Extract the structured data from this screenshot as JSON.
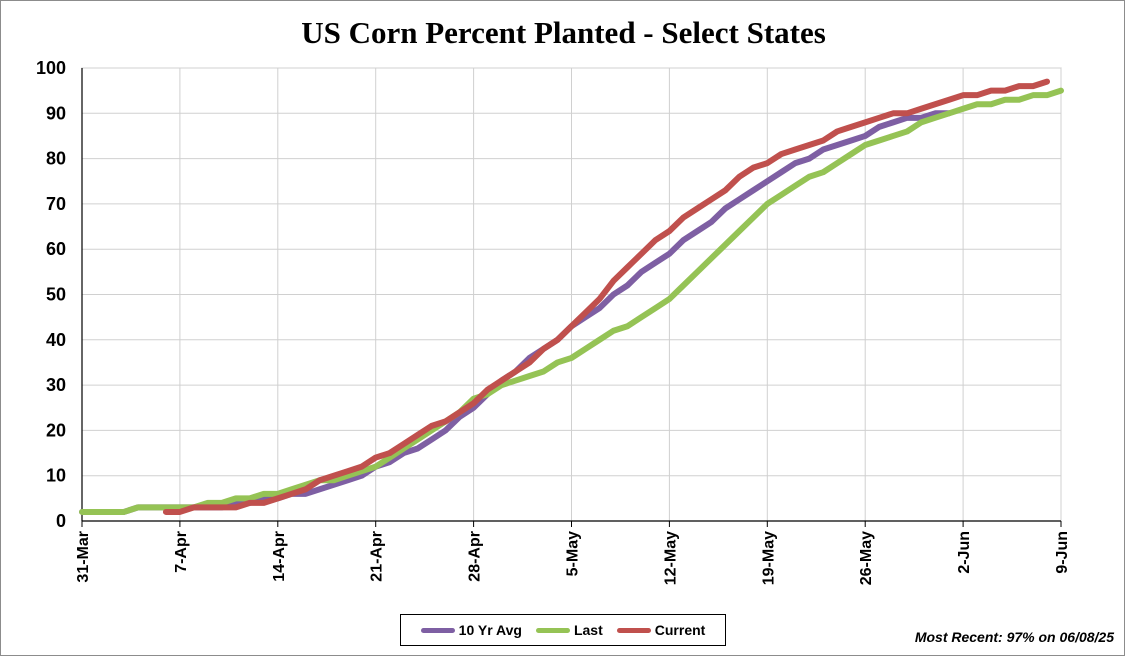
{
  "chart_data": {
    "type": "line",
    "title": "US Corn Percent Planted - Select States",
    "xlabel": "",
    "ylabel": "",
    "ylim": [
      0,
      100
    ],
    "yticks": [
      0,
      10,
      20,
      30,
      40,
      50,
      60,
      70,
      80,
      90,
      100
    ],
    "xlim_day": [
      0,
      70
    ],
    "xtick_labels": [
      {
        "day": 0,
        "label": "31-Mar"
      },
      {
        "day": 7,
        "label": "7-Apr"
      },
      {
        "day": 14,
        "label": "14-Apr"
      },
      {
        "day": 21,
        "label": "21-Apr"
      },
      {
        "day": 28,
        "label": "28-Apr"
      },
      {
        "day": 35,
        "label": "5-May"
      },
      {
        "day": 42,
        "label": "12-May"
      },
      {
        "day": 49,
        "label": "19-May"
      },
      {
        "day": 56,
        "label": "26-May"
      },
      {
        "day": 63,
        "label": "2-Jun"
      },
      {
        "day": 70,
        "label": "9-Jun"
      }
    ],
    "grid": true,
    "legend_position": "bottom",
    "series": [
      {
        "name": "10 Yr Avg",
        "color": "#7E5FA3",
        "points": [
          [
            0,
            2
          ],
          [
            1,
            2
          ],
          [
            2,
            2
          ],
          [
            3,
            2
          ],
          [
            4,
            3
          ],
          [
            5,
            3
          ],
          [
            6,
            3
          ],
          [
            7,
            3
          ],
          [
            8,
            3
          ],
          [
            9,
            3
          ],
          [
            10,
            3
          ],
          [
            11,
            4
          ],
          [
            12,
            4
          ],
          [
            13,
            5
          ],
          [
            14,
            5
          ],
          [
            15,
            6
          ],
          [
            16,
            6
          ],
          [
            17,
            7
          ],
          [
            18,
            8
          ],
          [
            19,
            9
          ],
          [
            20,
            10
          ],
          [
            21,
            12
          ],
          [
            22,
            13
          ],
          [
            23,
            15
          ],
          [
            24,
            16
          ],
          [
            25,
            18
          ],
          [
            26,
            20
          ],
          [
            27,
            23
          ],
          [
            28,
            25
          ],
          [
            29,
            28
          ],
          [
            30,
            31
          ],
          [
            31,
            33
          ],
          [
            32,
            36
          ],
          [
            33,
            38
          ],
          [
            34,
            40
          ],
          [
            35,
            43
          ],
          [
            36,
            45
          ],
          [
            37,
            47
          ],
          [
            38,
            50
          ],
          [
            39,
            52
          ],
          [
            40,
            55
          ],
          [
            41,
            57
          ],
          [
            42,
            59
          ],
          [
            43,
            62
          ],
          [
            44,
            64
          ],
          [
            45,
            66
          ],
          [
            46,
            69
          ],
          [
            47,
            71
          ],
          [
            48,
            73
          ],
          [
            49,
            75
          ],
          [
            50,
            77
          ],
          [
            51,
            79
          ],
          [
            52,
            80
          ],
          [
            53,
            82
          ],
          [
            54,
            83
          ],
          [
            55,
            84
          ],
          [
            56,
            85
          ],
          [
            57,
            87
          ],
          [
            58,
            88
          ],
          [
            59,
            89
          ],
          [
            60,
            89
          ],
          [
            61,
            90
          ],
          [
            62,
            90
          ]
        ]
      },
      {
        "name": "Last",
        "color": "#95C355",
        "points": [
          [
            0,
            2
          ],
          [
            1,
            2
          ],
          [
            2,
            2
          ],
          [
            3,
            2
          ],
          [
            4,
            3
          ],
          [
            5,
            3
          ],
          [
            6,
            3
          ],
          [
            7,
            3
          ],
          [
            8,
            3
          ],
          [
            9,
            4
          ],
          [
            10,
            4
          ],
          [
            11,
            5
          ],
          [
            12,
            5
          ],
          [
            13,
            6
          ],
          [
            14,
            6
          ],
          [
            15,
            7
          ],
          [
            16,
            8
          ],
          [
            17,
            9
          ],
          [
            18,
            9
          ],
          [
            19,
            10
          ],
          [
            20,
            11
          ],
          [
            21,
            12
          ],
          [
            22,
            14
          ],
          [
            23,
            16
          ],
          [
            24,
            18
          ],
          [
            25,
            20
          ],
          [
            26,
            22
          ],
          [
            27,
            24
          ],
          [
            28,
            27
          ],
          [
            29,
            28
          ],
          [
            30,
            30
          ],
          [
            31,
            31
          ],
          [
            32,
            32
          ],
          [
            33,
            33
          ],
          [
            34,
            35
          ],
          [
            35,
            36
          ],
          [
            36,
            38
          ],
          [
            37,
            40
          ],
          [
            38,
            42
          ],
          [
            39,
            43
          ],
          [
            40,
            45
          ],
          [
            41,
            47
          ],
          [
            42,
            49
          ],
          [
            43,
            52
          ],
          [
            44,
            55
          ],
          [
            45,
            58
          ],
          [
            46,
            61
          ],
          [
            47,
            64
          ],
          [
            48,
            67
          ],
          [
            49,
            70
          ],
          [
            50,
            72
          ],
          [
            51,
            74
          ],
          [
            52,
            76
          ],
          [
            53,
            77
          ],
          [
            54,
            79
          ],
          [
            55,
            81
          ],
          [
            56,
            83
          ],
          [
            57,
            84
          ],
          [
            58,
            85
          ],
          [
            59,
            86
          ],
          [
            60,
            88
          ],
          [
            61,
            89
          ],
          [
            62,
            90
          ],
          [
            63,
            91
          ],
          [
            64,
            92
          ],
          [
            65,
            92
          ],
          [
            66,
            93
          ],
          [
            67,
            93
          ],
          [
            68,
            94
          ],
          [
            69,
            94
          ],
          [
            70,
            95
          ]
        ]
      },
      {
        "name": "Current",
        "color": "#C0504D",
        "points": [
          [
            6,
            2
          ],
          [
            7,
            2
          ],
          [
            8,
            3
          ],
          [
            9,
            3
          ],
          [
            10,
            3
          ],
          [
            11,
            3
          ],
          [
            12,
            4
          ],
          [
            13,
            4
          ],
          [
            14,
            5
          ],
          [
            15,
            6
          ],
          [
            16,
            7
          ],
          [
            17,
            9
          ],
          [
            18,
            10
          ],
          [
            19,
            11
          ],
          [
            20,
            12
          ],
          [
            21,
            14
          ],
          [
            22,
            15
          ],
          [
            23,
            17
          ],
          [
            24,
            19
          ],
          [
            25,
            21
          ],
          [
            26,
            22
          ],
          [
            27,
            24
          ],
          [
            28,
            26
          ],
          [
            29,
            29
          ],
          [
            30,
            31
          ],
          [
            31,
            33
          ],
          [
            32,
            35
          ],
          [
            33,
            38
          ],
          [
            34,
            40
          ],
          [
            35,
            43
          ],
          [
            36,
            46
          ],
          [
            37,
            49
          ],
          [
            38,
            53
          ],
          [
            39,
            56
          ],
          [
            40,
            59
          ],
          [
            41,
            62
          ],
          [
            42,
            64
          ],
          [
            43,
            67
          ],
          [
            44,
            69
          ],
          [
            45,
            71
          ],
          [
            46,
            73
          ],
          [
            47,
            76
          ],
          [
            48,
            78
          ],
          [
            49,
            79
          ],
          [
            50,
            81
          ],
          [
            51,
            82
          ],
          [
            52,
            83
          ],
          [
            53,
            84
          ],
          [
            54,
            86
          ],
          [
            55,
            87
          ],
          [
            56,
            88
          ],
          [
            57,
            89
          ],
          [
            58,
            90
          ],
          [
            59,
            90
          ],
          [
            60,
            91
          ],
          [
            61,
            92
          ],
          [
            62,
            93
          ],
          [
            63,
            94
          ],
          [
            64,
            94
          ],
          [
            65,
            95
          ],
          [
            66,
            95
          ],
          [
            67,
            96
          ],
          [
            68,
            96
          ],
          [
            69,
            97
          ]
        ]
      }
    ]
  },
  "footer": {
    "most_recent": "Most Recent: 97% on 06/08/25"
  }
}
